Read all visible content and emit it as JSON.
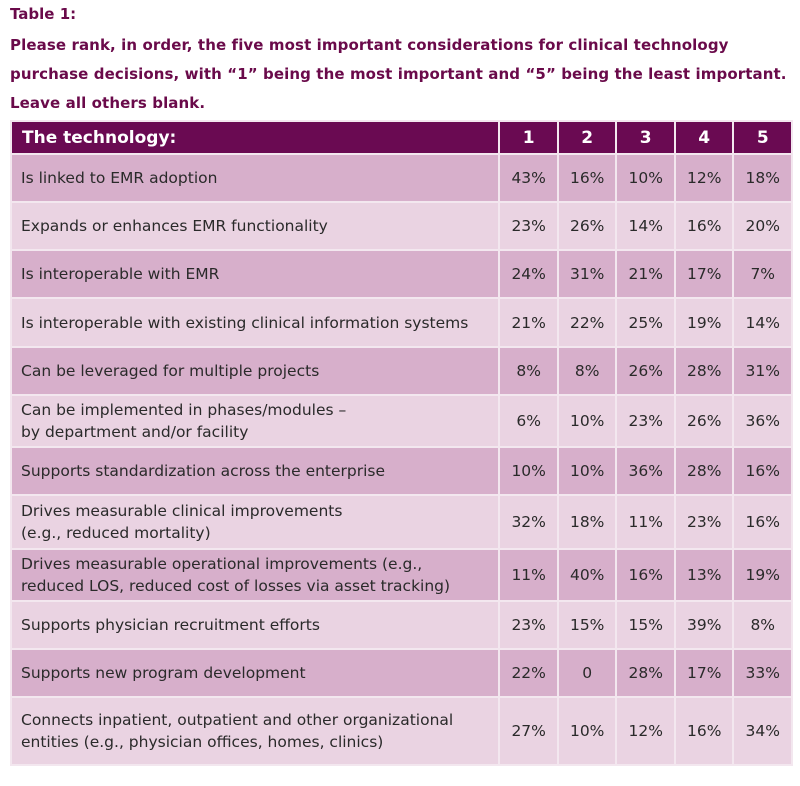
{
  "caption": {
    "label": "Table 1:",
    "question": "Please rank, in order, the five most important considerations for clinical technology purchase decisions, with “1” being the most important and “5” being the least important. Leave all others blank."
  },
  "table": {
    "headers": [
      "The technology:",
      "1",
      "2",
      "3",
      "4",
      "5"
    ],
    "rows": [
      {
        "label": "Is linked to EMR adoption",
        "values": [
          "43%",
          "16%",
          "10%",
          "12%",
          "18%"
        ]
      },
      {
        "label": "Expands or enhances EMR functionality",
        "values": [
          "23%",
          "26%",
          "14%",
          "16%",
          "20%"
        ]
      },
      {
        "label": "Is interoperable with EMR",
        "values": [
          "24%",
          "31%",
          "21%",
          "17%",
          "7%"
        ]
      },
      {
        "label": "Is interoperable with existing clinical information systems",
        "values": [
          "21%",
          "22%",
          "25%",
          "19%",
          "14%"
        ]
      },
      {
        "label": "Can be leveraged for multiple projects",
        "values": [
          "8%",
          "8%",
          "26%",
          "28%",
          "31%"
        ]
      },
      {
        "label": "Can be implemented in phases/modules –\nby department and/or facility",
        "values": [
          "6%",
          "10%",
          "23%",
          "26%",
          "36%"
        ]
      },
      {
        "label": "Supports standardization across the enterprise",
        "values": [
          "10%",
          "10%",
          "36%",
          "28%",
          "16%"
        ]
      },
      {
        "label": "Drives measurable clinical improvements\n(e.g., reduced mortality)",
        "values": [
          "32%",
          "18%",
          "11%",
          "23%",
          "16%"
        ]
      },
      {
        "label": "Drives measurable operational improvements (e.g.,\nreduced LOS, reduced cost of losses via asset tracking)",
        "values": [
          "11%",
          "40%",
          "16%",
          "13%",
          "19%"
        ]
      },
      {
        "label": "Supports physician recruitment efforts",
        "values": [
          "23%",
          "15%",
          "15%",
          "39%",
          "8%"
        ]
      },
      {
        "label": "Supports new program development",
        "values": [
          "22%",
          "0",
          "28%",
          "17%",
          "33%"
        ]
      },
      {
        "label": "Connects inpatient, outpatient and other organizational\nentities (e.g., physician offices, homes, clinics)",
        "values": [
          "27%",
          "10%",
          "12%",
          "16%",
          "34%"
        ]
      }
    ]
  },
  "colors": {
    "header_bg": "#6a0a52",
    "caption_text": "#6a0a4a",
    "row_dark": "#d7afcb",
    "row_light": "#ead3e2"
  }
}
